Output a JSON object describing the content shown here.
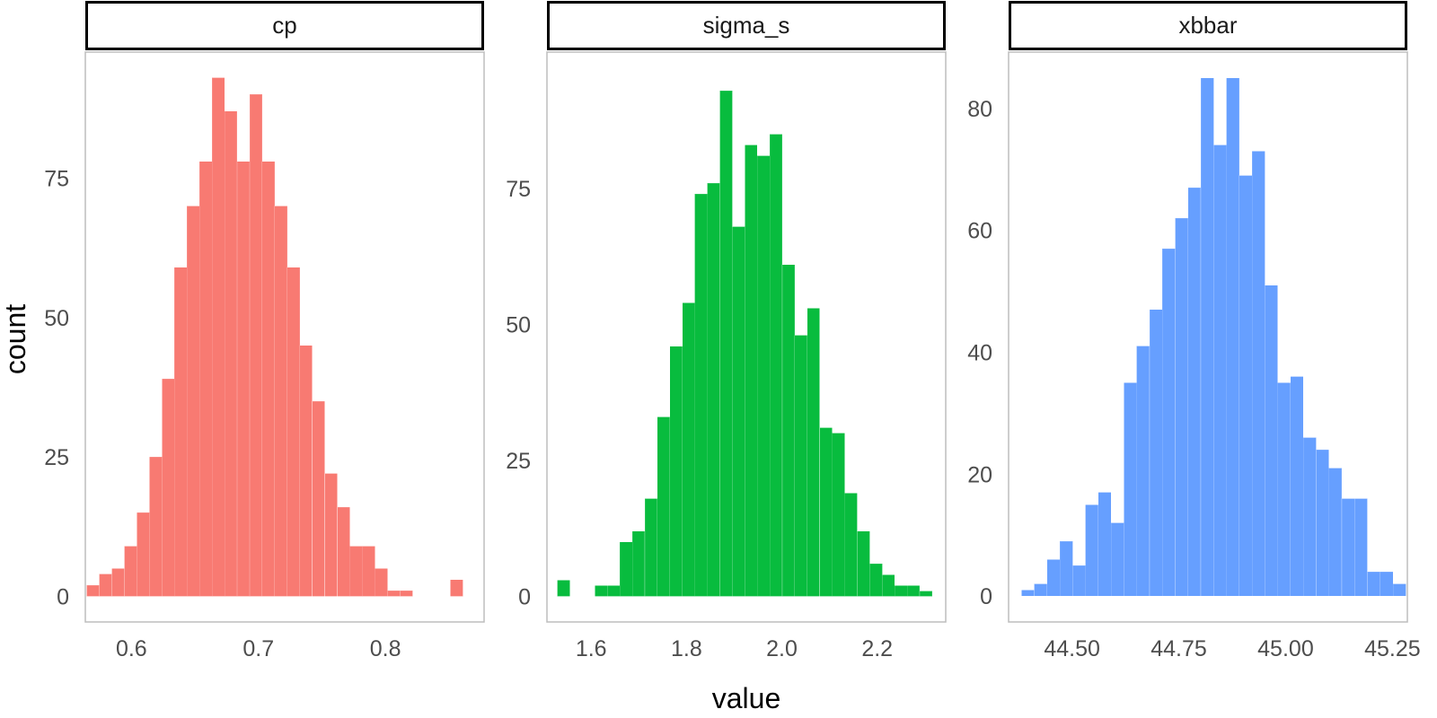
{
  "chart_data": {
    "type": "bar",
    "subtype": "faceted-histogram",
    "xlabel": "value",
    "ylabel": "count",
    "grid": false,
    "legend": "none",
    "panels": [
      {
        "name": "cp",
        "color": "#F8766D",
        "bin_width": 0.00987,
        "xlim": [
          0.5637,
          0.8777
        ],
        "ylim": [
          -4.6,
          97.6
        ],
        "xticks": [
          0.6,
          0.7,
          0.8
        ],
        "xtick_labels": [
          "0.6",
          "0.7",
          "0.8"
        ],
        "yticks": [
          0,
          25,
          50,
          75
        ],
        "ytick_labels": [
          "0",
          "25",
          "50",
          "75"
        ],
        "bins": [
          {
            "x": 0.5697,
            "count": 2
          },
          {
            "x": 0.5796,
            "count": 4
          },
          {
            "x": 0.5895,
            "count": 5
          },
          {
            "x": 0.5994,
            "count": 9
          },
          {
            "x": 0.6092,
            "count": 15
          },
          {
            "x": 0.6191,
            "count": 25
          },
          {
            "x": 0.629,
            "count": 39
          },
          {
            "x": 0.6388,
            "count": 59
          },
          {
            "x": 0.6487,
            "count": 70
          },
          {
            "x": 0.6586,
            "count": 78
          },
          {
            "x": 0.6685,
            "count": 93
          },
          {
            "x": 0.6783,
            "count": 87
          },
          {
            "x": 0.6882,
            "count": 78
          },
          {
            "x": 0.6981,
            "count": 90
          },
          {
            "x": 0.7079,
            "count": 78
          },
          {
            "x": 0.7178,
            "count": 70
          },
          {
            "x": 0.7277,
            "count": 59
          },
          {
            "x": 0.7375,
            "count": 45
          },
          {
            "x": 0.7474,
            "count": 35
          },
          {
            "x": 0.7573,
            "count": 22
          },
          {
            "x": 0.7672,
            "count": 16
          },
          {
            "x": 0.777,
            "count": 9
          },
          {
            "x": 0.7869,
            "count": 9
          },
          {
            "x": 0.7968,
            "count": 5
          },
          {
            "x": 0.8066,
            "count": 1
          },
          {
            "x": 0.8165,
            "count": 1
          },
          {
            "x": 0.8264,
            "count": 0
          },
          {
            "x": 0.8363,
            "count": 0
          },
          {
            "x": 0.8461,
            "count": 0
          },
          {
            "x": 0.856,
            "count": 3
          }
        ]
      },
      {
        "name": "sigma_s",
        "color": "#00BA38",
        "bin_width": 0.02619,
        "xlim": [
          1.5073,
          2.3437
        ],
        "ylim": [
          -4.7,
          100.1
        ],
        "xticks": [
          1.6,
          1.8,
          2.0,
          2.2
        ],
        "xtick_labels": [
          "1.6",
          "1.8",
          "2.0",
          "2.2"
        ],
        "yticks": [
          0,
          25,
          50,
          75
        ],
        "ytick_labels": [
          "0",
          "25",
          "50",
          "75"
        ],
        "bins": [
          {
            "x": 1.5424,
            "count": 3
          },
          {
            "x": 1.5686,
            "count": 0
          },
          {
            "x": 1.5948,
            "count": 0
          },
          {
            "x": 1.621,
            "count": 2
          },
          {
            "x": 1.6472,
            "count": 2
          },
          {
            "x": 1.6734,
            "count": 10
          },
          {
            "x": 1.6996,
            "count": 12
          },
          {
            "x": 1.7258,
            "count": 18
          },
          {
            "x": 1.752,
            "count": 33
          },
          {
            "x": 1.7782,
            "count": 46
          },
          {
            "x": 1.8044,
            "count": 54
          },
          {
            "x": 1.8306,
            "count": 74
          },
          {
            "x": 1.8568,
            "count": 76
          },
          {
            "x": 1.883,
            "count": 93
          },
          {
            "x": 1.9092,
            "count": 68
          },
          {
            "x": 1.9354,
            "count": 83
          },
          {
            "x": 1.9616,
            "count": 81
          },
          {
            "x": 1.9878,
            "count": 85
          },
          {
            "x": 2.014,
            "count": 61
          },
          {
            "x": 2.0402,
            "count": 48
          },
          {
            "x": 2.0664,
            "count": 53
          },
          {
            "x": 2.0926,
            "count": 31
          },
          {
            "x": 2.1188,
            "count": 30
          },
          {
            "x": 2.145,
            "count": 19
          },
          {
            "x": 2.1712,
            "count": 12
          },
          {
            "x": 2.1974,
            "count": 6
          },
          {
            "x": 2.2236,
            "count": 4
          },
          {
            "x": 2.2498,
            "count": 2
          },
          {
            "x": 2.276,
            "count": 2
          },
          {
            "x": 2.3022,
            "count": 1
          }
        ]
      },
      {
        "name": "xbbar",
        "color": "#619CFF",
        "bin_width": 0.03001,
        "xlim": [
          44.3515,
          45.285
        ],
        "ylim": [
          -4.25,
          89.25
        ],
        "xticks": [
          44.5,
          44.75,
          45.0,
          45.25
        ],
        "xtick_labels": [
          "44.50",
          "44.75",
          "45.00",
          "45.25"
        ],
        "yticks": [
          0,
          20,
          40,
          60,
          80
        ],
        "ytick_labels": [
          "0",
          "20",
          "40",
          "60",
          "80"
        ],
        "bins": [
          {
            "x": 44.3965,
            "count": 1
          },
          {
            "x": 44.4265,
            "count": 2
          },
          {
            "x": 44.4565,
            "count": 6
          },
          {
            "x": 44.4865,
            "count": 9
          },
          {
            "x": 44.5165,
            "count": 5
          },
          {
            "x": 44.5465,
            "count": 15
          },
          {
            "x": 44.5765,
            "count": 17
          },
          {
            "x": 44.6065,
            "count": 12
          },
          {
            "x": 44.6365,
            "count": 35
          },
          {
            "x": 44.6665,
            "count": 41
          },
          {
            "x": 44.6965,
            "count": 47
          },
          {
            "x": 44.7265,
            "count": 57
          },
          {
            "x": 44.7565,
            "count": 62
          },
          {
            "x": 44.7865,
            "count": 67
          },
          {
            "x": 44.8165,
            "count": 85
          },
          {
            "x": 44.8465,
            "count": 74
          },
          {
            "x": 44.8765,
            "count": 85
          },
          {
            "x": 44.9065,
            "count": 69
          },
          {
            "x": 44.9365,
            "count": 73
          },
          {
            "x": 44.9665,
            "count": 51
          },
          {
            "x": 44.9965,
            "count": 35
          },
          {
            "x": 45.0265,
            "count": 36
          },
          {
            "x": 45.0565,
            "count": 26
          },
          {
            "x": 45.0865,
            "count": 24
          },
          {
            "x": 45.1165,
            "count": 21
          },
          {
            "x": 45.1465,
            "count": 16
          },
          {
            "x": 45.1765,
            "count": 16
          },
          {
            "x": 45.2065,
            "count": 4
          },
          {
            "x": 45.2365,
            "count": 4
          },
          {
            "x": 45.2665,
            "count": 2
          }
        ]
      }
    ]
  }
}
